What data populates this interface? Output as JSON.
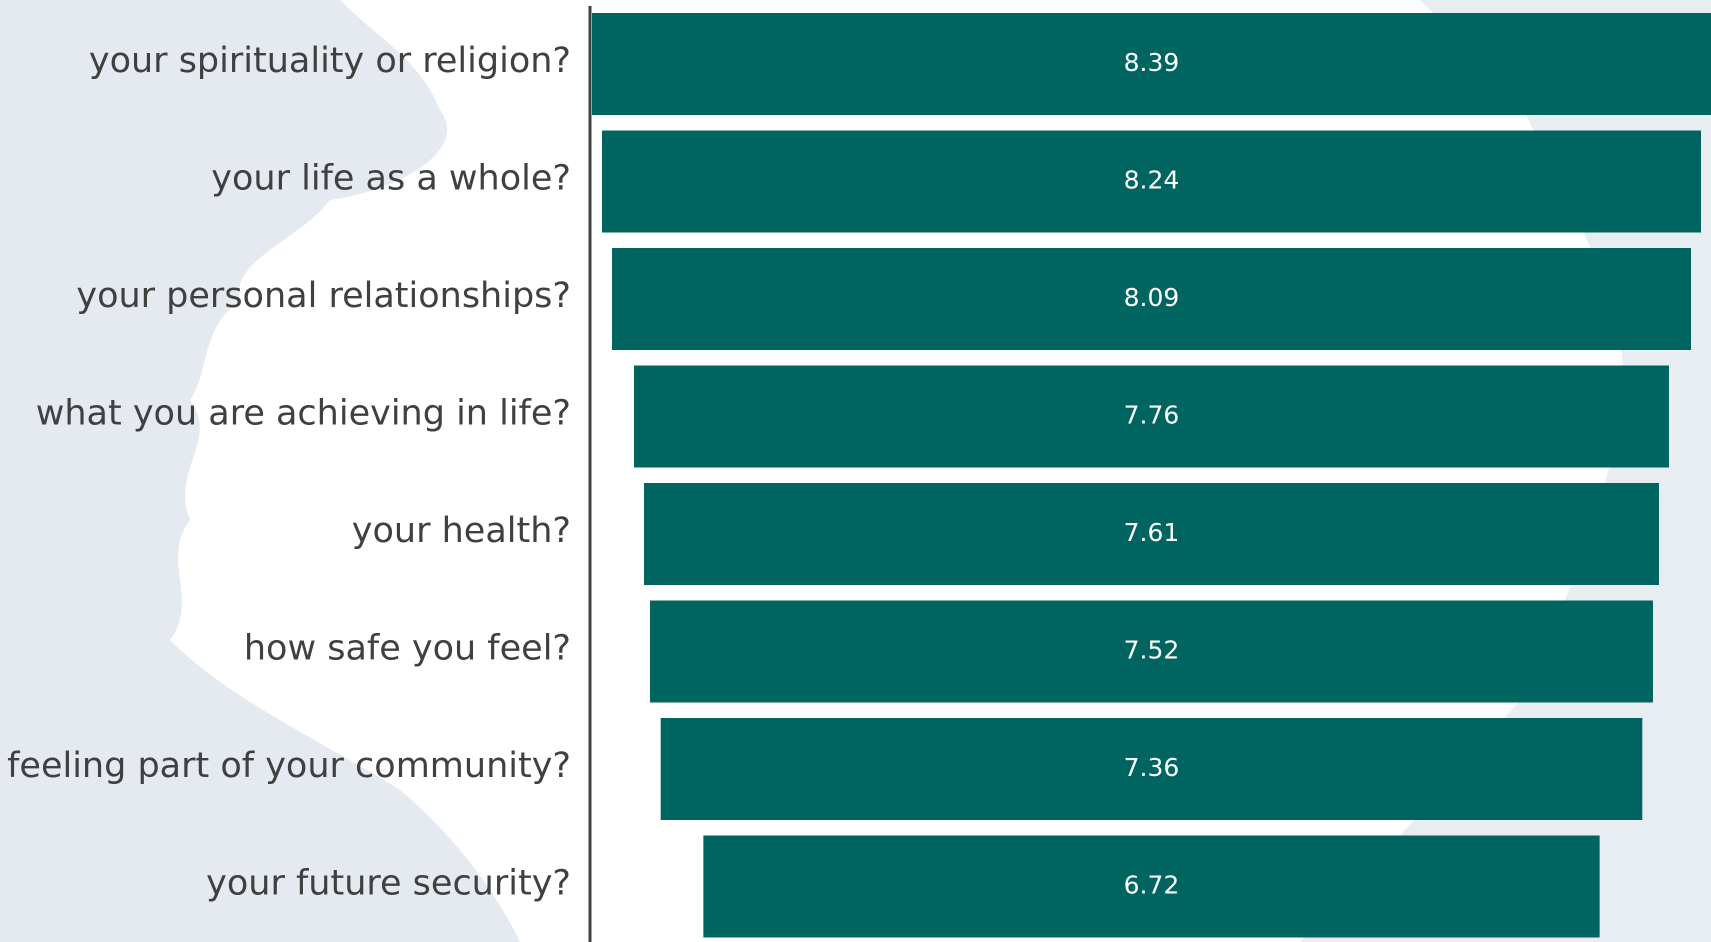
{
  "chart_data": {
    "type": "funnel",
    "categories": [
      "your spirituality or religion?",
      "your life as a whole?",
      "your personal relationships?",
      "what you are achieving in life?",
      "your health?",
      "how safe you feel?",
      "feeling part of your community?",
      "your future security?"
    ],
    "values": [
      8.39,
      8.24,
      8.09,
      7.76,
      7.61,
      7.52,
      7.36,
      6.72
    ],
    "color": "#006560"
  }
}
